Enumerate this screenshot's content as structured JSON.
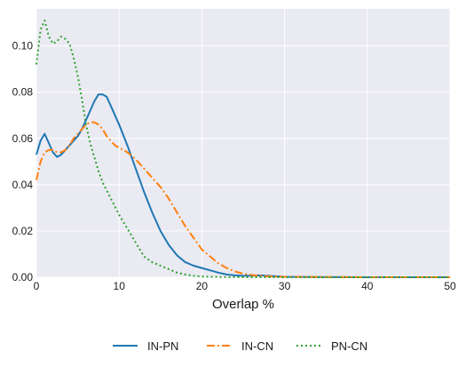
{
  "chart_data": {
    "type": "line",
    "title": "",
    "xlabel": "Overlap %",
    "ylabel": "",
    "xlim": [
      0,
      50
    ],
    "ylim": [
      0,
      0.116
    ],
    "x_ticks": [
      0,
      10,
      20,
      30,
      40,
      50
    ],
    "y_ticks": [
      0.0,
      0.02,
      0.04,
      0.06,
      0.08,
      0.1
    ],
    "x_tick_labels": [
      "0",
      "10",
      "20",
      "30",
      "40",
      "50"
    ],
    "y_tick_labels": [
      "0.00",
      "0.02",
      "0.04",
      "0.06",
      "0.08",
      "0.10"
    ],
    "grid": true,
    "background": "#eaeaf2",
    "legend_position": "bottom-center",
    "series": [
      {
        "name": "IN-PN",
        "color": "#1f77b4",
        "linestyle": "solid",
        "x": [
          0,
          0.5,
          1,
          1.5,
          2,
          2.5,
          3,
          3.5,
          4,
          4.5,
          5,
          5.5,
          6,
          6.5,
          7,
          7.5,
          8,
          8.5,
          9,
          10,
          11,
          12,
          13,
          14,
          15,
          16,
          17,
          18,
          19,
          20,
          21,
          22,
          23,
          24,
          25,
          26,
          27,
          28,
          30,
          35,
          40,
          45,
          50
        ],
        "y": [
          0.053,
          0.059,
          0.062,
          0.058,
          0.054,
          0.052,
          0.053,
          0.055,
          0.057,
          0.059,
          0.061,
          0.064,
          0.068,
          0.072,
          0.076,
          0.079,
          0.079,
          0.078,
          0.074,
          0.066,
          0.057,
          0.047,
          0.037,
          0.028,
          0.02,
          0.014,
          0.0095,
          0.0065,
          0.005,
          0.004,
          0.003,
          0.002,
          0.0012,
          0.0008,
          0.0006,
          0.0007,
          0.0008,
          0.0006,
          0.0002,
          5e-05,
          0.0,
          0.0,
          0.0
        ]
      },
      {
        "name": "IN-CN",
        "color": "#ff7f0e",
        "linestyle": "dashdot",
        "x": [
          0,
          0.5,
          1,
          1.5,
          2,
          2.5,
          3,
          3.5,
          4,
          4.5,
          5,
          5.5,
          6,
          6.5,
          7,
          7.5,
          8,
          8.5,
          9,
          9.5,
          10,
          11,
          12,
          13,
          14,
          15,
          16,
          17,
          18,
          19,
          20,
          21,
          22,
          23,
          24,
          25,
          26,
          27,
          28,
          30,
          35,
          40,
          45,
          50
        ],
        "y": [
          0.042,
          0.05,
          0.054,
          0.055,
          0.055,
          0.054,
          0.054,
          0.055,
          0.057,
          0.06,
          0.062,
          0.064,
          0.066,
          0.067,
          0.067,
          0.066,
          0.064,
          0.061,
          0.059,
          0.057,
          0.056,
          0.054,
          0.051,
          0.047,
          0.043,
          0.039,
          0.034,
          0.028,
          0.022,
          0.017,
          0.012,
          0.009,
          0.006,
          0.004,
          0.0025,
          0.0015,
          0.001,
          0.0006,
          0.0004,
          0.0002,
          0.0001,
          0.0,
          0.0,
          0.0
        ]
      },
      {
        "name": "PN-CN",
        "color": "#2ca02c",
        "linestyle": "dotted",
        "x": [
          0,
          0.5,
          1,
          1.5,
          2,
          2.5,
          3,
          3.5,
          4,
          4.5,
          5,
          5.5,
          6,
          6.5,
          7,
          7.5,
          8,
          9,
          10,
          11,
          12,
          13,
          14,
          15,
          16,
          17,
          18,
          19,
          20,
          22,
          25,
          30,
          35,
          40,
          45,
          50
        ],
        "y": [
          0.092,
          0.107,
          0.111,
          0.104,
          0.101,
          0.102,
          0.104,
          0.103,
          0.101,
          0.095,
          0.087,
          0.077,
          0.066,
          0.058,
          0.052,
          0.046,
          0.041,
          0.034,
          0.027,
          0.021,
          0.015,
          0.009,
          0.0065,
          0.005,
          0.0035,
          0.002,
          0.0012,
          0.0006,
          0.0003,
          0.0001,
          0.0,
          0.0,
          0.0,
          0.0,
          0.0,
          0.0
        ]
      }
    ]
  }
}
